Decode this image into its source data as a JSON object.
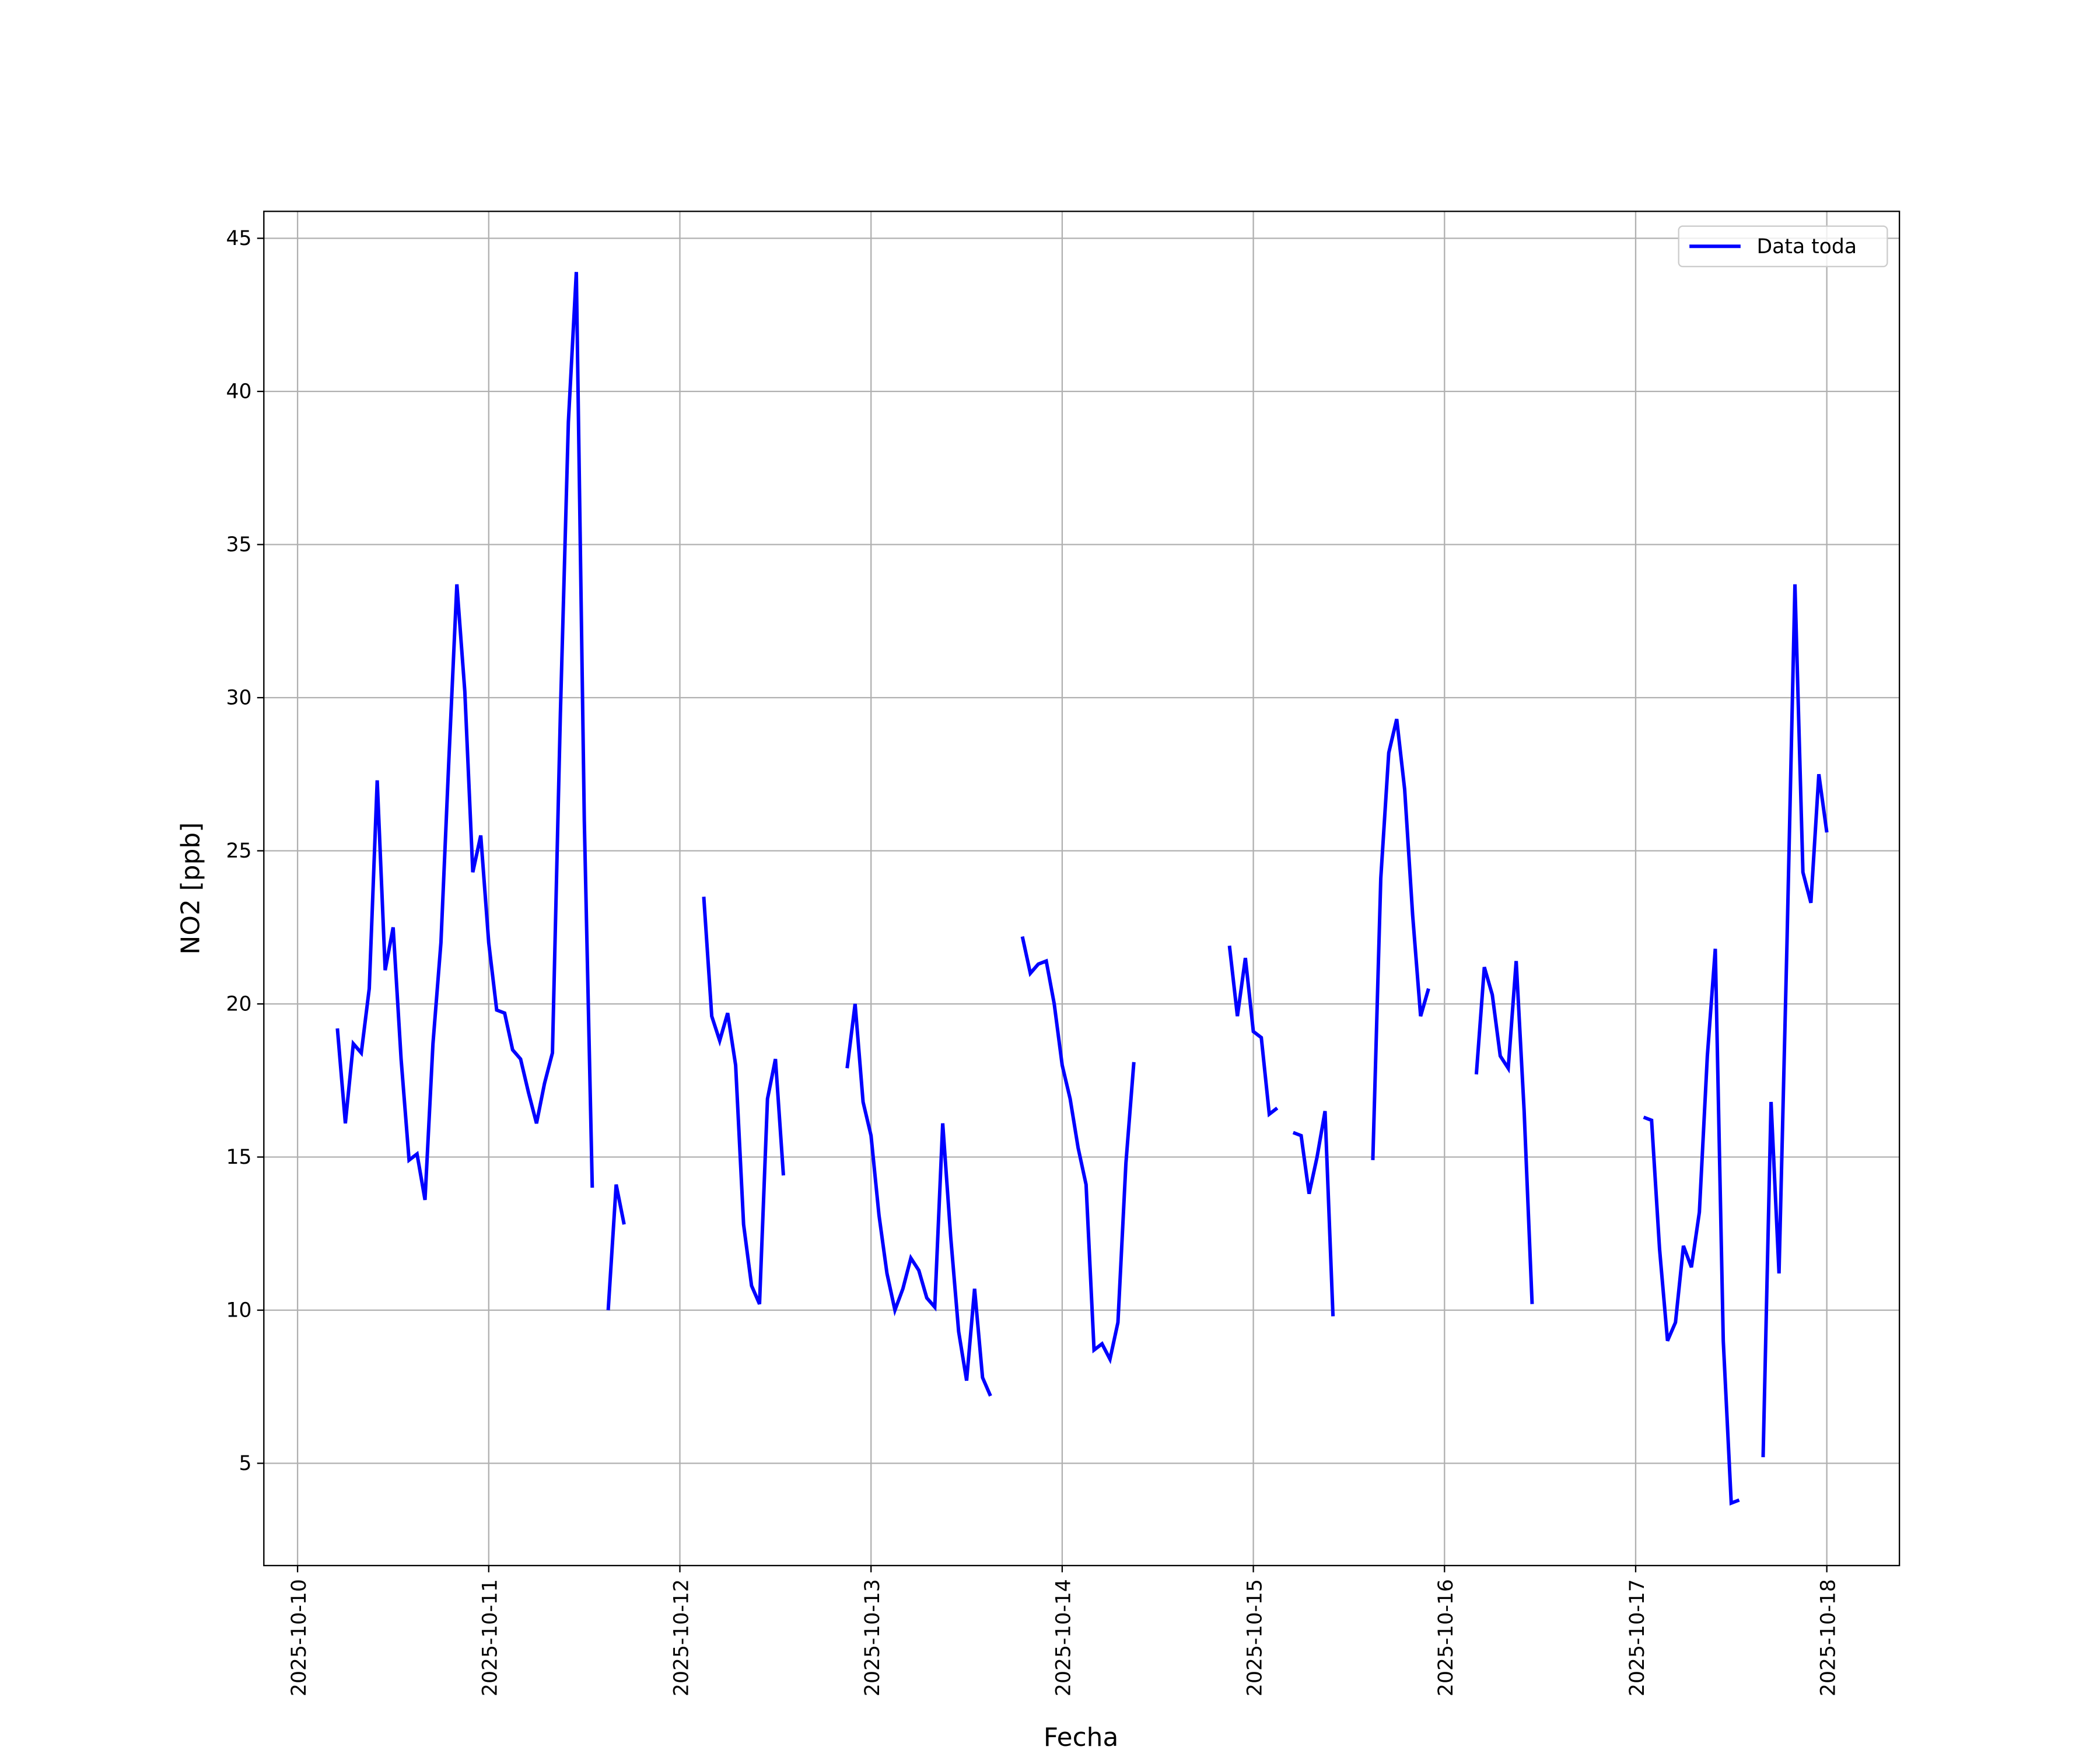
{
  "chart_data": {
    "type": "line",
    "xlabel": "Fecha",
    "ylabel": "NO2 [ppb]",
    "x": [
      "2025-10-10T05:00",
      "2025-10-10T06:00",
      "2025-10-10T07:00",
      "2025-10-10T08:00",
      "2025-10-10T09:00",
      "2025-10-10T10:00",
      "2025-10-10T11:00",
      "2025-10-10T12:00",
      "2025-10-10T13:00",
      "2025-10-10T14:00",
      "2025-10-10T15:00",
      "2025-10-10T16:00",
      "2025-10-10T17:00",
      "2025-10-10T18:00",
      "2025-10-10T19:00",
      "2025-10-10T20:00",
      "2025-10-10T21:00",
      "2025-10-10T22:00",
      "2025-10-10T23:00",
      "2025-10-11T00:00",
      "2025-10-11T01:00",
      "2025-10-11T02:00",
      "2025-10-11T03:00",
      "2025-10-11T04:00",
      "2025-10-11T05:00",
      "2025-10-11T06:00",
      "2025-10-11T07:00",
      "2025-10-11T08:00",
      "2025-10-11T09:00",
      "2025-10-11T10:00",
      "2025-10-11T11:00",
      "2025-10-11T12:00",
      "2025-10-11T13:00",
      "2025-10-11T14:00",
      "2025-10-11T15:00",
      "2025-10-11T16:00",
      "2025-10-11T17:00",
      "2025-10-11T18:00",
      "2025-10-12T03:00",
      "2025-10-12T04:00",
      "2025-10-12T05:00",
      "2025-10-12T06:00",
      "2025-10-12T07:00",
      "2025-10-12T08:00",
      "2025-10-12T09:00",
      "2025-10-12T10:00",
      "2025-10-12T11:00",
      "2025-10-12T12:00",
      "2025-10-12T13:00",
      "2025-10-12T14:00",
      "2025-10-12T21:00",
      "2025-10-12T22:00",
      "2025-10-12T23:00",
      "2025-10-13T00:00",
      "2025-10-13T01:00",
      "2025-10-13T02:00",
      "2025-10-13T03:00",
      "2025-10-13T04:00",
      "2025-10-13T05:00",
      "2025-10-13T06:00",
      "2025-10-13T07:00",
      "2025-10-13T08:00",
      "2025-10-13T09:00",
      "2025-10-13T10:00",
      "2025-10-13T11:00",
      "2025-10-13T12:00",
      "2025-10-13T13:00",
      "2025-10-13T14:00",
      "2025-10-13T15:00",
      "2025-10-13T16:00",
      "2025-10-13T19:00",
      "2025-10-13T20:00",
      "2025-10-13T21:00",
      "2025-10-13T22:00",
      "2025-10-13T23:00",
      "2025-10-14T00:00",
      "2025-10-14T01:00",
      "2025-10-14T02:00",
      "2025-10-14T03:00",
      "2025-10-14T04:00",
      "2025-10-14T05:00",
      "2025-10-14T06:00",
      "2025-10-14T07:00",
      "2025-10-14T08:00",
      "2025-10-14T09:00",
      "2025-10-14T10:00",
      "2025-10-14T21:00",
      "2025-10-14T22:00",
      "2025-10-14T23:00",
      "2025-10-15T00:00",
      "2025-10-15T01:00",
      "2025-10-15T02:00",
      "2025-10-15T03:00",
      "2025-10-15T04:00",
      "2025-10-15T05:00",
      "2025-10-15T06:00",
      "2025-10-15T07:00",
      "2025-10-15T08:00",
      "2025-10-15T09:00",
      "2025-10-15T10:00",
      "2025-10-15T11:00",
      "2025-10-15T15:00",
      "2025-10-15T16:00",
      "2025-10-15T17:00",
      "2025-10-15T18:00",
      "2025-10-15T19:00",
      "2025-10-15T20:00",
      "2025-10-15T21:00",
      "2025-10-15T22:00",
      "2025-10-15T23:00",
      "2025-10-16T04:00",
      "2025-10-16T05:00",
      "2025-10-16T06:00",
      "2025-10-16T07:00",
      "2025-10-16T08:00",
      "2025-10-16T09:00",
      "2025-10-16T10:00",
      "2025-10-16T11:00",
      "2025-10-16T12:00",
      "2025-10-17T01:00",
      "2025-10-17T02:00",
      "2025-10-17T03:00",
      "2025-10-17T04:00",
      "2025-10-17T05:00",
      "2025-10-17T06:00",
      "2025-10-17T07:00",
      "2025-10-17T08:00",
      "2025-10-17T09:00",
      "2025-10-17T10:00",
      "2025-10-17T11:00",
      "2025-10-17T12:00",
      "2025-10-17T13:00",
      "2025-10-17T14:00",
      "2025-10-17T16:00",
      "2025-10-17T17:00",
      "2025-10-17T18:00",
      "2025-10-17T19:00",
      "2025-10-17T20:00",
      "2025-10-17T21:00",
      "2025-10-17T22:00",
      "2025-10-17T23:00",
      "2025-10-18T00:00"
    ],
    "series": [
      {
        "name": "Data toda",
        "color": "#0000ff",
        "values": [
          19.2,
          16.1,
          18.7,
          18.4,
          20.5,
          27.3,
          21.1,
          22.5,
          18.2,
          14.9,
          15.1,
          13.6,
          18.7,
          22.0,
          28.0,
          33.7,
          30.2,
          24.3,
          25.5,
          22.0,
          19.8,
          19.7,
          18.5,
          18.2,
          17.1,
          16.1,
          17.4,
          18.4,
          29.5,
          39.0,
          43.9,
          26.0,
          14.0,
          null,
          10.0,
          14.1,
          12.8,
          null,
          23.5,
          19.6,
          18.8,
          19.7,
          18.0,
          12.8,
          10.8,
          10.2,
          16.9,
          18.2,
          14.4,
          null,
          17.9,
          20.0,
          16.8,
          15.7,
          13.1,
          11.2,
          10.0,
          10.7,
          11.7,
          11.3,
          10.4,
          10.1,
          16.1,
          12.4,
          9.3,
          7.7,
          10.7,
          7.8,
          7.2,
          null,
          22.2,
          21.0,
          21.3,
          21.4,
          20.0,
          18.0,
          16.9,
          15.3,
          14.1,
          8.7,
          8.9,
          8.4,
          9.6,
          14.8,
          18.1,
          null,
          21.9,
          19.6,
          21.5,
          19.1,
          18.9,
          16.4,
          16.6,
          null,
          15.8,
          15.7,
          13.8,
          15.0,
          16.5,
          9.8,
          null,
          14.9,
          24.1,
          28.2,
          29.3,
          27.0,
          22.9,
          19.6,
          20.5,
          null,
          17.7,
          21.2,
          20.3,
          18.3,
          17.9,
          21.4,
          16.5,
          10.2,
          null,
          16.3,
          16.2,
          12.0,
          9.0,
          9.6,
          12.1,
          11.4,
          13.2,
          18.3,
          21.8,
          9.0,
          3.7,
          3.8,
          null,
          5.2,
          16.8,
          11.2,
          22.0,
          33.7,
          24.3,
          23.3,
          27.5,
          25.6
        ]
      }
    ],
    "xlim": [
      "2025-10-09T19:46",
      "2025-10-18T09:07"
    ],
    "xticks": [
      "2025-10-10",
      "2025-10-11",
      "2025-10-12",
      "2025-10-13",
      "2025-10-14",
      "2025-10-15",
      "2025-10-16",
      "2025-10-17",
      "2025-10-18"
    ],
    "ylim": [
      1.66,
      45.88
    ],
    "yticks": [
      5,
      10,
      15,
      20,
      25,
      30,
      35,
      40,
      45
    ],
    "grid": true,
    "legend": "upper right"
  }
}
